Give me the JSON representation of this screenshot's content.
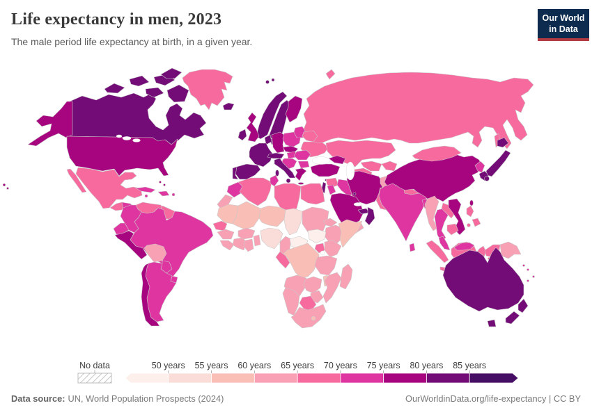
{
  "header": {
    "title": "Life expectancy in men, 2023",
    "subtitle": "The male period life expectancy at birth, in a given year.",
    "logo": {
      "line1": "Our World",
      "line2": "in Data",
      "bg_color": "#0c2b4e",
      "accent_color": "#b23b41"
    }
  },
  "footer": {
    "source_label": "Data source:",
    "source_text": "UN, World Population Prospects (2024)",
    "credit": "OurWorldinData.org/life-expectancy | CC BY"
  },
  "chart_data": {
    "type": "choropleth_map",
    "title": "Life expectancy in men, 2023",
    "subtitle": "The male period life expectancy at birth, in a given year.",
    "year": 2023,
    "unit": "years",
    "no_data_label": "No data",
    "legend_tick_labels": [
      "50 years",
      "55 years",
      "60 years",
      "65 years",
      "70 years",
      "75 years",
      "80 years",
      "85 years"
    ],
    "legend_bins": [
      {
        "key": "u50",
        "range": "<50",
        "color": "#fdf0ec"
      },
      {
        "key": "b50",
        "range": "50-55",
        "color": "#fadcd8"
      },
      {
        "key": "b55",
        "range": "55-60",
        "color": "#f9beb6"
      },
      {
        "key": "b60",
        "range": "60-65",
        "color": "#f8a0b4"
      },
      {
        "key": "b65",
        "range": "65-70",
        "color": "#f76a9e"
      },
      {
        "key": "b70",
        "range": "70-75",
        "color": "#de35a0"
      },
      {
        "key": "b75",
        "range": "75-80",
        "color": "#a7057f"
      },
      {
        "key": "b80",
        "range": "80-85",
        "color": "#730c77"
      },
      {
        "key": "b85",
        "range": "85+",
        "color": "#470e65"
      }
    ],
    "region_bins": {
      "canada": "b80",
      "usa": "b75",
      "greenland": "b65",
      "mexico": "b65",
      "central_america_north": "b65",
      "honduras_nicaragua": "b70",
      "costa_rica_panama": "b75",
      "cuba": "b70",
      "hispaniola": "b70",
      "jamaica": "b70",
      "puerto_rico": "b70",
      "bahamas": "b75",
      "venezuela": "b65",
      "colombia": "b70",
      "guyana_suriname": "b65",
      "ecuador": "b70",
      "peru": "b75",
      "brazil": "b70",
      "bolivia": "b60",
      "paraguay": "b70",
      "uruguay": "b70",
      "argentina": "b70",
      "chile": "b75",
      "iceland": "b80",
      "norway": "b80",
      "sweden": "b80",
      "finland": "b75",
      "denmark": "b80",
      "uk": "b75",
      "ireland": "b80",
      "netherlands_belgium": "b80",
      "germany": "b75",
      "poland": "b70",
      "czech_slovakia": "b75",
      "france": "b80",
      "switzerland_austria": "b80",
      "hungary": "b70",
      "italy": "b80",
      "spain": "b80",
      "portugal": "b80",
      "balkans": "b70",
      "greece": "b75",
      "romania": "b70",
      "bulgaria": "b70",
      "baltics": "b70",
      "belarus": "b65",
      "ukraine": "b65",
      "russia": "b65",
      "kazakhstan": "b65",
      "uzbekistan": "b65",
      "turkmenistan": "b65",
      "kyrgyzstan_tajikistan": "b65",
      "caucasus": "b75",
      "turkey": "b75",
      "cyprus": "b80",
      "syria": "b65",
      "israel": "b80",
      "jordan": "b70",
      "iraq": "b70",
      "saudi_arabia": "b75",
      "kuwait": "b80",
      "uae": "b80",
      "oman": "b80",
      "yemen": "b60",
      "iran": "b75",
      "afghanistan": "b60",
      "pakistan": "b65",
      "india": "b70",
      "nepal": "b65",
      "bangladesh": "b70",
      "sri_lanka": "b70",
      "china": "b75",
      "mongolia": "b65",
      "north_korea": "b70",
      "south_korea": "b80",
      "japan": "b80",
      "taiwan": "b75",
      "myanmar": "b60",
      "thailand": "b70",
      "laos": "b65",
      "vietnam": "b75",
      "cambodia": "b65",
      "malaysia": "b70",
      "indonesia": "b65",
      "philippines": "b65",
      "papua_new_guinea": "b60",
      "solomon_fiji": "b70",
      "australia": "b80",
      "new_zealand": "b80",
      "morocco": "b70",
      "western_sahara": "b60",
      "algeria": "b65",
      "tunisia": "b70",
      "libya": "b65",
      "egypt": "b65",
      "mauritania": "b55",
      "mali": "b55",
      "niger": "b55",
      "chad": "b50",
      "sudan": "b60",
      "eritrea": "b60",
      "ethiopia": "b60",
      "somalia": "b55",
      "senegal": "b65",
      "guinea": "b60",
      "sierra_leone_liberia": "b60",
      "cote_divoire": "b60",
      "ghana": "b60",
      "burkina_faso": "b60",
      "togo_benin": "b60",
      "nigeria": "b50",
      "cameroon": "b60",
      "central_african_republic": "u50",
      "south_sudan": "u50",
      "kenya": "b60",
      "uganda": "b65",
      "rwanda_burundi": "b60",
      "drc": "b55",
      "gabon_congo": "b65",
      "angola": "b60",
      "zambia": "b60",
      "tanzania": "b60",
      "malawi": "b55",
      "mozambique": "b60",
      "madagascar": "b60",
      "zimbabwe": "b60",
      "botswana": "b65",
      "namibia": "b60",
      "south_africa": "b60",
      "lesotho": "b55"
    }
  }
}
